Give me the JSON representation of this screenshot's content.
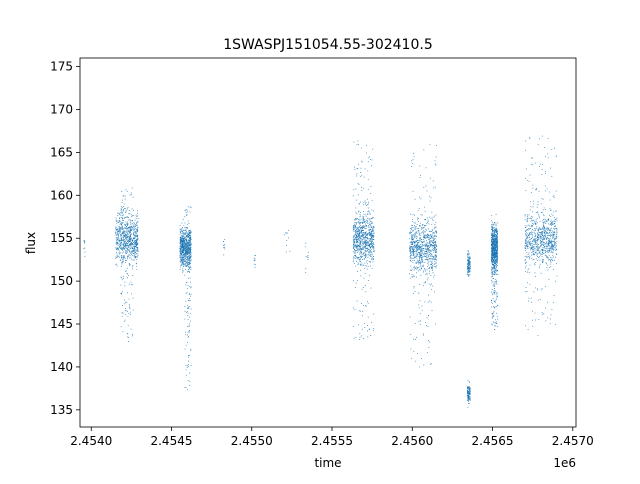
{
  "chart_data": {
    "type": "scatter",
    "title": "1SWASPJ151054.55-302410.5",
    "xlabel": "time",
    "ylabel": "flux",
    "x_offset_label": "1e6",
    "xlim": [
      2453930,
      2457020
    ],
    "ylim": [
      133,
      176
    ],
    "xticks": [
      2.454,
      2.4545,
      2.455,
      2.4555,
      2.456,
      2.4565,
      2.457
    ],
    "xtick_labels": [
      "2.4540",
      "2.4545",
      "2.4550",
      "2.4555",
      "2.4560",
      "2.4565",
      "2.4570"
    ],
    "yticks": [
      135,
      140,
      145,
      150,
      155,
      160,
      165,
      170,
      175
    ],
    "ytick_labels": [
      "135",
      "140",
      "145",
      "150",
      "155",
      "160",
      "165",
      "170",
      "175"
    ],
    "grid": false,
    "marker_color": "#1f77b4",
    "series": [
      {
        "clusters": [
          {
            "x_start": 2453950,
            "x_end": 2453960,
            "y_center": 154.0,
            "y_spread": 1.3,
            "density": "sparse"
          },
          {
            "x_start": 2454150,
            "x_end": 2454290,
            "y_center": 155.0,
            "y_spread": 2.8,
            "density": "dense"
          },
          {
            "x_start": 2454180,
            "x_end": 2454260,
            "y_center": 152.0,
            "y_spread": 9.0,
            "density": "outliers"
          },
          {
            "x_start": 2454550,
            "x_end": 2454620,
            "y_center": 154.0,
            "y_spread": 2.2,
            "density": "dense"
          },
          {
            "x_start": 2454580,
            "x_end": 2454620,
            "y_center": 148.0,
            "y_spread": 11.0,
            "density": "outliers"
          },
          {
            "x_start": 2454820,
            "x_end": 2454830,
            "y_center": 154.0,
            "y_spread": 1.0,
            "density": "sparse"
          },
          {
            "x_start": 2455010,
            "x_end": 2455020,
            "y_center": 152.5,
            "y_spread": 1.0,
            "density": "sparse"
          },
          {
            "x_start": 2455200,
            "x_end": 2455240,
            "y_center": 154.5,
            "y_spread": 1.5,
            "density": "sparse"
          },
          {
            "x_start": 2455330,
            "x_end": 2455350,
            "y_center": 153.0,
            "y_spread": 1.5,
            "density": "sparse"
          },
          {
            "x_start": 2455630,
            "x_end": 2455760,
            "y_center": 155.0,
            "y_spread": 2.8,
            "density": "dense"
          },
          {
            "x_start": 2455630,
            "x_end": 2455760,
            "y_center": 155.0,
            "y_spread": 12.0,
            "density": "outliers"
          },
          {
            "x_start": 2455980,
            "x_end": 2456150,
            "y_center": 154.0,
            "y_spread": 3.0,
            "density": "dense"
          },
          {
            "x_start": 2455980,
            "x_end": 2456150,
            "y_center": 153.0,
            "y_spread": 13.0,
            "density": "outliers"
          },
          {
            "x_start": 2456340,
            "x_end": 2456360,
            "y_center": 152.0,
            "y_spread": 1.3,
            "density": "medium"
          },
          {
            "x_start": 2456340,
            "x_end": 2456360,
            "y_center": 137.0,
            "y_spread": 1.2,
            "density": "medium"
          },
          {
            "x_start": 2456490,
            "x_end": 2456530,
            "y_center": 154.0,
            "y_spread": 2.5,
            "density": "dense"
          },
          {
            "x_start": 2456490,
            "x_end": 2456530,
            "y_center": 149.0,
            "y_spread": 5.0,
            "density": "outliers"
          },
          {
            "x_start": 2456700,
            "x_end": 2456900,
            "y_center": 155.0,
            "y_spread": 3.0,
            "density": "dense"
          },
          {
            "x_start": 2456700,
            "x_end": 2456900,
            "y_center": 155.0,
            "y_spread": 12.0,
            "density": "outliers"
          }
        ]
      }
    ]
  }
}
